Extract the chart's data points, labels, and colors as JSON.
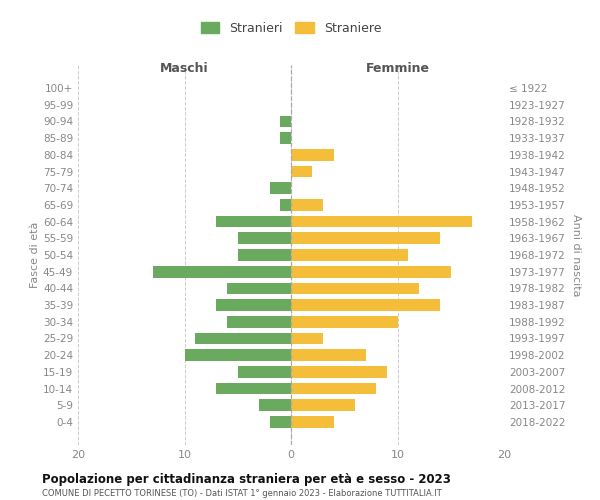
{
  "age_groups": [
    "0-4",
    "5-9",
    "10-14",
    "15-19",
    "20-24",
    "25-29",
    "30-34",
    "35-39",
    "40-44",
    "45-49",
    "50-54",
    "55-59",
    "60-64",
    "65-69",
    "70-74",
    "75-79",
    "80-84",
    "85-89",
    "90-94",
    "95-99",
    "100+"
  ],
  "birth_years": [
    "2018-2022",
    "2013-2017",
    "2008-2012",
    "2003-2007",
    "1998-2002",
    "1993-1997",
    "1988-1992",
    "1983-1987",
    "1978-1982",
    "1973-1977",
    "1968-1972",
    "1963-1967",
    "1958-1962",
    "1953-1957",
    "1948-1952",
    "1943-1947",
    "1938-1942",
    "1933-1937",
    "1928-1932",
    "1923-1927",
    "≤ 1922"
  ],
  "maschi": [
    2,
    3,
    7,
    5,
    10,
    9,
    6,
    7,
    6,
    13,
    5,
    5,
    7,
    1,
    2,
    0,
    0,
    1,
    1,
    0,
    0
  ],
  "femmine": [
    4,
    6,
    8,
    9,
    7,
    3,
    10,
    14,
    12,
    15,
    11,
    14,
    17,
    3,
    0,
    2,
    4,
    0,
    0,
    0,
    0
  ],
  "maschi_color": "#6aaa5e",
  "femmine_color": "#f5be3a",
  "background_color": "#ffffff",
  "grid_color": "#cccccc",
  "title": "Popolazione per cittadinanza straniera per età e sesso - 2023",
  "subtitle": "COMUNE DI PECETTO TORINESE (TO) - Dati ISTAT 1° gennaio 2023 - Elaborazione TUTTITALIA.IT",
  "xlabel_left": "Maschi",
  "xlabel_right": "Femmine",
  "ylabel_left": "Fasce di età",
  "ylabel_right": "Anni di nascita",
  "legend_maschi": "Stranieri",
  "legend_femmine": "Straniere",
  "xlim": 20,
  "tick_color": "#888888",
  "spine_color": "#cccccc"
}
